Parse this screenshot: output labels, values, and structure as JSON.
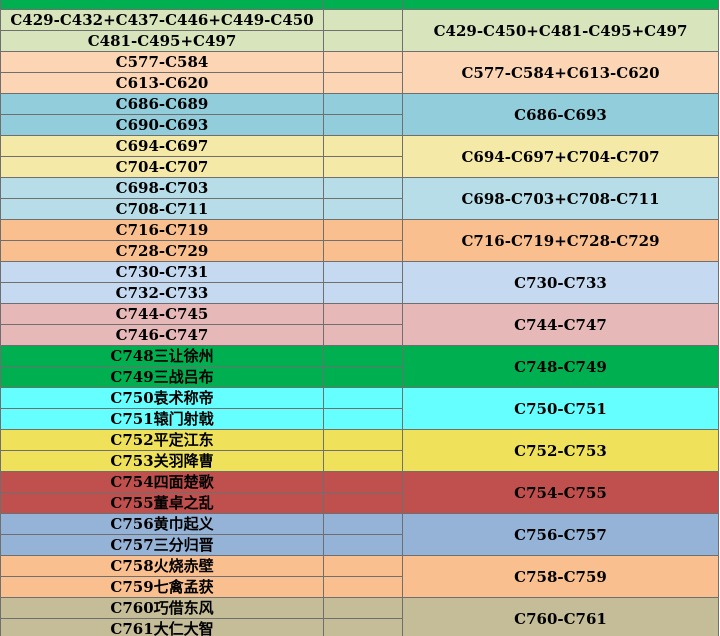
{
  "header": {
    "col1": "",
    "col2": "",
    "col3": ""
  },
  "groups": [
    {
      "color": "#d8e4bc",
      "left": [
        "C429-C432+C437-C446+C449-C450",
        "C481-C495+C497"
      ],
      "right": "C429-C450+C481-C495+C497"
    },
    {
      "color": "#fcd5b4",
      "left": [
        "C577-C584",
        "C613-C620"
      ],
      "right": "C577-C584+C613-C620"
    },
    {
      "color": "#92cddc",
      "left": [
        "C686-C689",
        "C690-C693"
      ],
      "right": "C686-C693"
    },
    {
      "color": "#f5e9a7",
      "left": [
        "C694-C697",
        "C704-C707"
      ],
      "right": "C694-C697+C704-C707"
    },
    {
      "color": "#b7dee8",
      "left": [
        "C698-C703",
        "C708-C711"
      ],
      "right": "C698-C703+C708-C711"
    },
    {
      "color": "#fabf8f",
      "left": [
        "C716-C719",
        "C728-C729"
      ],
      "right": "C716-C719+C728-C729"
    },
    {
      "color": "#c5d9f1",
      "left": [
        "C730-C731",
        "C732-C733"
      ],
      "right": "C730-C733"
    },
    {
      "color": "#e6b8b7",
      "left": [
        "C744-C745",
        "C746-C747"
      ],
      "right": "C744-C747"
    },
    {
      "color": "#00b050",
      "left": [
        "C748三让徐州",
        "C749三战吕布"
      ],
      "right": "C748-C749"
    },
    {
      "color": "#66ffff",
      "left": [
        "C750袁术称帝",
        "C751辕门射戟"
      ],
      "right": "C750-C751"
    },
    {
      "color": "#efe25a",
      "left": [
        "C752平定江东",
        "C753关羽降曹"
      ],
      "right": "C752-C753"
    },
    {
      "color": "#c0504d",
      "left": [
        "C754四面楚歌",
        "C755董卓之乱"
      ],
      "right": "C754-C755"
    },
    {
      "color": "#95b3d7",
      "left": [
        "C756黄巾起义",
        "C757三分归晋"
      ],
      "right": "C756-C757"
    },
    {
      "color": "#fabf8f",
      "left": [
        "C758火烧赤壁",
        "C759七禽孟获"
      ],
      "right": "C758-C759"
    },
    {
      "color": "#c4bd97",
      "left": [
        "C760巧借东风",
        "C761大仁大智"
      ],
      "right": "C760-C761"
    }
  ]
}
